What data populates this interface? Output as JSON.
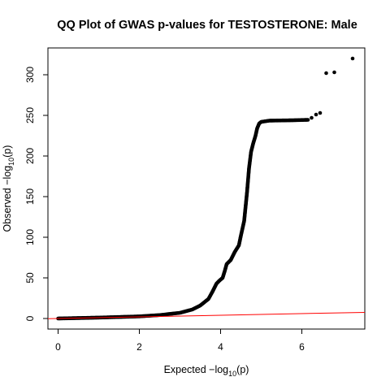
{
  "chart_data": {
    "type": "scatter",
    "title": "QQ Plot of GWAS p-values for TESTOSTERONE: Male",
    "xlabel": {
      "pre": "Expected  −log",
      "sub": "10",
      "post": "(p)"
    },
    "ylabel": {
      "pre": "Observed  −log",
      "sub": "10",
      "post": "(p)"
    },
    "xlim": [
      -0.25,
      7.55
    ],
    "ylim": [
      -13,
      333
    ],
    "xticks": [
      0,
      2,
      4,
      6
    ],
    "yticks": [
      0,
      50,
      100,
      150,
      200,
      250,
      300
    ],
    "colors": {
      "points": "#000000",
      "reference_line": "#ff0000",
      "axes": "#000000"
    },
    "reference_line": {
      "intercept": 0,
      "slope": 1
    },
    "curve_points": [
      [
        0.0,
        0.0
      ],
      [
        1.0,
        1.1
      ],
      [
        2.0,
        2.6
      ],
      [
        2.5,
        4.2
      ],
      [
        3.0,
        7.0
      ],
      [
        3.3,
        11.0
      ],
      [
        3.5,
        16.0
      ],
      [
        3.7,
        24.0
      ],
      [
        3.8,
        33.0
      ],
      [
        3.9,
        43.0
      ],
      [
        3.98,
        47.0
      ],
      [
        4.05,
        50.0
      ],
      [
        4.1,
        58.0
      ],
      [
        4.15,
        67.0
      ],
      [
        4.25,
        72.0
      ],
      [
        4.35,
        82.0
      ],
      [
        4.45,
        90.0
      ],
      [
        4.5,
        102.0
      ],
      [
        4.58,
        120.0
      ],
      [
        4.65,
        155.0
      ],
      [
        4.7,
        185.0
      ],
      [
        4.75,
        205.0
      ],
      [
        4.8,
        215.0
      ],
      [
        4.86,
        225.0
      ],
      [
        4.9,
        234.0
      ],
      [
        4.95,
        240.0
      ],
      [
        5.0,
        242.0
      ],
      [
        5.2,
        243.5
      ],
      [
        5.8,
        244.0
      ],
      [
        6.15,
        244.5
      ]
    ],
    "outliers": [
      [
        6.24,
        247.0
      ],
      [
        6.35,
        251.0
      ],
      [
        6.45,
        253.0
      ],
      [
        6.6,
        302.0
      ],
      [
        6.8,
        303.0
      ],
      [
        7.25,
        320.0
      ]
    ]
  }
}
